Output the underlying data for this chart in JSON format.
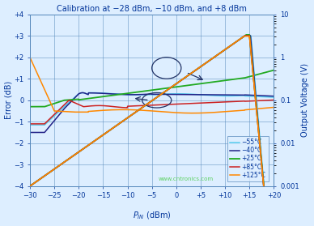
{
  "title": "Calibration at −28 dBm, −10 dBm, and +8 dBm",
  "ylabel_left": "Error (dB)",
  "ylabel_right": "Output Voltage (V)",
  "xlabel": "P",
  "x_min": -30,
  "x_max": 20,
  "y_left_min": -4,
  "y_left_max": 4,
  "colors": {
    "m55": "#55CCEE",
    "m40": "#222288",
    "p25": "#22AA22",
    "p85": "#CC2222",
    "p125": "#FF8800"
  },
  "legend_labels": [
    "−55°C",
    "−40°C",
    "+25°C",
    "+85°C",
    "+125°C"
  ],
  "background_color": "#ddeeff",
  "grid_color": "#5588bb",
  "title_color": "#003399",
  "axis_color": "#003399",
  "tick_color": "#003399",
  "watermark": "www.cntronics.com",
  "watermark_color": "#44cc44",
  "annot_color": "#223366"
}
